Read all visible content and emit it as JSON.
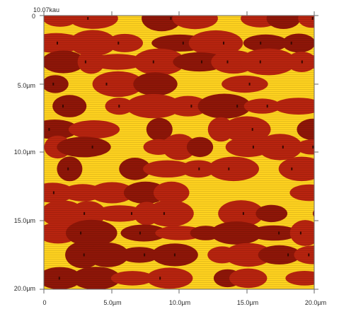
{
  "scale_bar": {
    "max_label": "10.07kau"
  },
  "colors": {
    "background": "#ffffff",
    "grain": "#b8240f",
    "grain_shadow": "#8f1608",
    "matrix": "#ffd21f",
    "frame": "#6a6a6a"
  },
  "image_axes": {
    "y_ticks": [
      "0",
      "5.0µm",
      "10.0µm",
      "15.0µm",
      "20.0µm"
    ],
    "x_ticks": [
      "0",
      "5.0µm",
      "10.0µm",
      "15.0µm",
      "20.0µm"
    ]
  },
  "image_content": {
    "description_keys": [
      "grain-map"
    ]
  }
}
